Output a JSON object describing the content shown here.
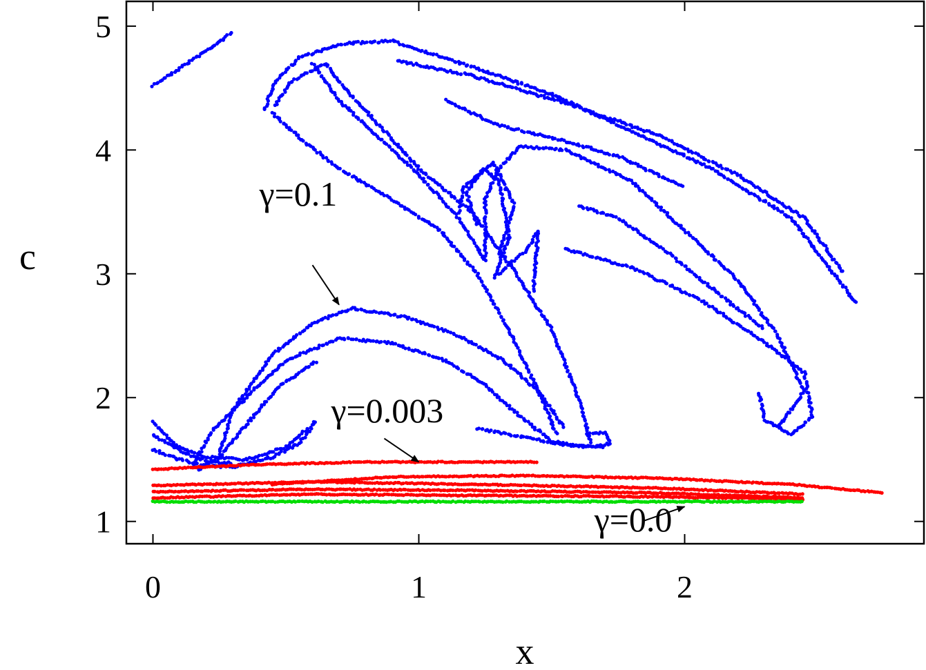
{
  "chart_data": {
    "type": "scatter",
    "title": "",
    "xlabel": "x",
    "ylabel": "c",
    "xlim": [
      -0.1,
      2.9
    ],
    "ylim": [
      0.82,
      5.2
    ],
    "x_ticks": [
      0,
      1,
      2
    ],
    "x_tick_labels": [
      "0",
      "1",
      "2"
    ],
    "y_ticks": [
      1,
      2,
      3,
      4,
      5
    ],
    "y_tick_labels": [
      "1",
      "2",
      "3",
      "4",
      "5"
    ],
    "grid": false,
    "legend": "none",
    "series": [
      {
        "color": "#0000ff",
        "marker": "dot",
        "curves": [
          [
            [
              0.0,
              4.52
            ],
            [
              0.1,
              4.66
            ],
            [
              0.2,
              4.8
            ],
            [
              0.3,
              4.95
            ]
          ],
          [
            [
              0.42,
              4.33
            ],
            [
              0.46,
              4.55
            ],
            [
              0.55,
              4.75
            ],
            [
              0.72,
              4.86
            ],
            [
              0.9,
              4.88
            ],
            [
              1.2,
              4.67
            ],
            [
              1.5,
              4.45
            ],
            [
              1.8,
              4.15
            ],
            [
              2.1,
              3.85
            ],
            [
              2.4,
              3.45
            ],
            [
              2.65,
              2.75
            ]
          ],
          [
            [
              0.46,
              4.36
            ],
            [
              0.52,
              4.55
            ],
            [
              0.65,
              4.7
            ],
            [
              0.72,
              4.5
            ],
            [
              0.85,
              4.2
            ],
            [
              1.0,
              3.85
            ],
            [
              1.2,
              3.5
            ],
            [
              1.35,
              3.05
            ],
            [
              1.5,
              2.55
            ],
            [
              1.6,
              2.0
            ],
            [
              1.65,
              1.62
            ]
          ],
          [
            [
              0.45,
              4.3
            ],
            [
              0.55,
              4.1
            ],
            [
              0.7,
              3.85
            ],
            [
              0.9,
              3.6
            ],
            [
              1.08,
              3.35
            ],
            [
              1.22,
              3.0
            ],
            [
              1.35,
              2.5
            ],
            [
              1.45,
              2.05
            ],
            [
              1.52,
              1.7
            ]
          ],
          [
            [
              0.6,
              4.7
            ],
            [
              0.7,
              4.4
            ],
            [
              0.85,
              4.1
            ],
            [
              1.0,
              3.8
            ],
            [
              1.15,
              3.45
            ],
            [
              1.25,
              3.1
            ],
            [
              1.25,
              3.6
            ],
            [
              1.3,
              3.85
            ],
            [
              1.38,
              4.03
            ],
            [
              1.55,
              4.0
            ],
            [
              1.8,
              3.75
            ],
            [
              2.0,
              3.35
            ],
            [
              2.2,
              2.95
            ],
            [
              2.35,
              2.5
            ],
            [
              2.45,
              2.05
            ],
            [
              2.35,
              1.75
            ]
          ],
          [
            [
              1.22,
              3.4
            ],
            [
              1.18,
              3.65
            ],
            [
              1.24,
              3.85
            ],
            [
              1.3,
              3.75
            ],
            [
              1.34,
              3.3
            ],
            [
              1.28,
              2.95
            ]
          ],
          [
            [
              1.15,
              3.5
            ],
            [
              1.17,
              3.7
            ],
            [
              1.28,
              3.9
            ],
            [
              1.36,
              3.55
            ],
            [
              1.3,
              3.15
            ]
          ],
          [
            [
              1.3,
              3.0
            ],
            [
              1.4,
              3.18
            ],
            [
              1.45,
              3.35
            ],
            [
              1.43,
              2.85
            ]
          ],
          [
            [
              1.55,
              3.2
            ],
            [
              1.8,
              3.05
            ],
            [
              2.05,
              2.8
            ],
            [
              2.3,
              2.45
            ],
            [
              2.45,
              2.2
            ],
            [
              2.48,
              1.85
            ],
            [
              2.4,
              1.7
            ],
            [
              2.3,
              1.82
            ],
            [
              2.28,
              2.05
            ]
          ],
          [
            [
              1.6,
              3.55
            ],
            [
              1.75,
              3.45
            ],
            [
              1.95,
              3.15
            ],
            [
              2.15,
              2.8
            ],
            [
              2.3,
              2.55
            ]
          ],
          [
            [
              0.92,
              4.72
            ],
            [
              1.2,
              4.6
            ],
            [
              1.55,
              4.38
            ],
            [
              1.9,
              4.12
            ],
            [
              2.2,
              3.8
            ],
            [
              2.45,
              3.45
            ],
            [
              2.6,
              3.0
            ]
          ],
          [
            [
              1.1,
              4.4
            ],
            [
              1.3,
              4.2
            ],
            [
              1.5,
              4.1
            ],
            [
              1.75,
              3.95
            ],
            [
              2.0,
              3.7
            ]
          ],
          [
            [
              0.0,
              1.8
            ],
            [
              0.08,
              1.62
            ],
            [
              0.2,
              1.52
            ],
            [
              0.35,
              1.5
            ],
            [
              0.5,
              1.6
            ],
            [
              0.62,
              1.82
            ]
          ],
          [
            [
              0.0,
              1.58
            ],
            [
              0.1,
              1.5
            ],
            [
              0.2,
              1.45
            ],
            [
              0.3,
              1.44
            ],
            [
              0.45,
              1.52
            ],
            [
              0.55,
              1.63
            ],
            [
              0.6,
              1.76
            ]
          ],
          [
            [
              0.0,
              1.7
            ],
            [
              0.12,
              1.55
            ],
            [
              0.22,
              1.48
            ],
            [
              0.3,
              1.47
            ]
          ],
          [
            [
              0.15,
              1.45
            ],
            [
              0.22,
              1.72
            ],
            [
              0.35,
              2.0
            ],
            [
              0.5,
              2.3
            ],
            [
              0.7,
              2.48
            ],
            [
              0.9,
              2.44
            ],
            [
              1.1,
              2.3
            ],
            [
              1.25,
              2.1
            ],
            [
              1.38,
              1.85
            ],
            [
              1.5,
              1.65
            ],
            [
              1.62,
              1.6
            ],
            [
              1.72,
              1.63
            ],
            [
              1.7,
              1.72
            ],
            [
              1.62,
              1.7
            ]
          ],
          [
            [
              0.25,
              1.55
            ],
            [
              0.3,
              1.9
            ],
            [
              0.45,
              2.35
            ],
            [
              0.6,
              2.6
            ],
            [
              0.75,
              2.72
            ],
            [
              0.95,
              2.65
            ],
            [
              1.15,
              2.5
            ],
            [
              1.32,
              2.3
            ],
            [
              1.45,
              2.05
            ],
            [
              1.55,
              1.75
            ]
          ],
          [
            [
              0.17,
              1.42
            ],
            [
              0.25,
              1.52
            ],
            [
              0.35,
              1.78
            ],
            [
              0.48,
              2.1
            ],
            [
              0.62,
              2.3
            ]
          ],
          [
            [
              1.22,
              1.75
            ],
            [
              1.35,
              1.7
            ],
            [
              1.55,
              1.62
            ],
            [
              1.7,
              1.6
            ]
          ]
        ]
      },
      {
        "color": "#ff0000",
        "marker": "dot",
        "curves": [
          [
            [
              0.0,
              1.42
            ],
            [
              0.4,
              1.46
            ],
            [
              0.8,
              1.48
            ],
            [
              1.2,
              1.48
            ],
            [
              1.45,
              1.48
            ]
          ],
          [
            [
              0.45,
              1.3
            ],
            [
              0.9,
              1.36
            ],
            [
              1.4,
              1.37
            ],
            [
              1.9,
              1.35
            ],
            [
              2.4,
              1.3
            ],
            [
              2.75,
              1.23
            ]
          ],
          [
            [
              0.0,
              1.29
            ],
            [
              0.6,
              1.32
            ],
            [
              1.2,
              1.3
            ],
            [
              1.9,
              1.27
            ],
            [
              2.45,
              1.22
            ]
          ],
          [
            [
              0.0,
              1.24
            ],
            [
              0.6,
              1.26
            ],
            [
              1.2,
              1.25
            ],
            [
              1.9,
              1.23
            ],
            [
              2.45,
              1.19
            ]
          ],
          [
            [
              0.0,
              1.19
            ],
            [
              0.6,
              1.22
            ],
            [
              1.2,
              1.21
            ],
            [
              1.9,
              1.2
            ],
            [
              2.45,
              1.18
            ]
          ]
        ]
      },
      {
        "color": "#00dd00",
        "marker": "dot",
        "curves": [
          [
            [
              0.0,
              1.16
            ],
            [
              0.6,
              1.16
            ],
            [
              1.2,
              1.16
            ],
            [
              1.8,
              1.16
            ],
            [
              2.45,
              1.16
            ]
          ]
        ]
      }
    ],
    "annotations": [
      {
        "text": "γ=0.1",
        "at": [
          0.4,
          3.55
        ],
        "arrow_from": [
          0.6,
          3.07
        ],
        "arrow_to": [
          0.7,
          2.75
        ]
      },
      {
        "text": "γ=0.003",
        "at": [
          0.67,
          1.8
        ],
        "arrow_from": [
          0.87,
          1.67
        ],
        "arrow_to": [
          1.0,
          1.48
        ]
      },
      {
        "text": "γ=0.0",
        "at": [
          1.66,
          0.92
        ],
        "arrow_from": [
          1.84,
          1.0
        ],
        "arrow_to": [
          2.0,
          1.12
        ]
      }
    ]
  }
}
